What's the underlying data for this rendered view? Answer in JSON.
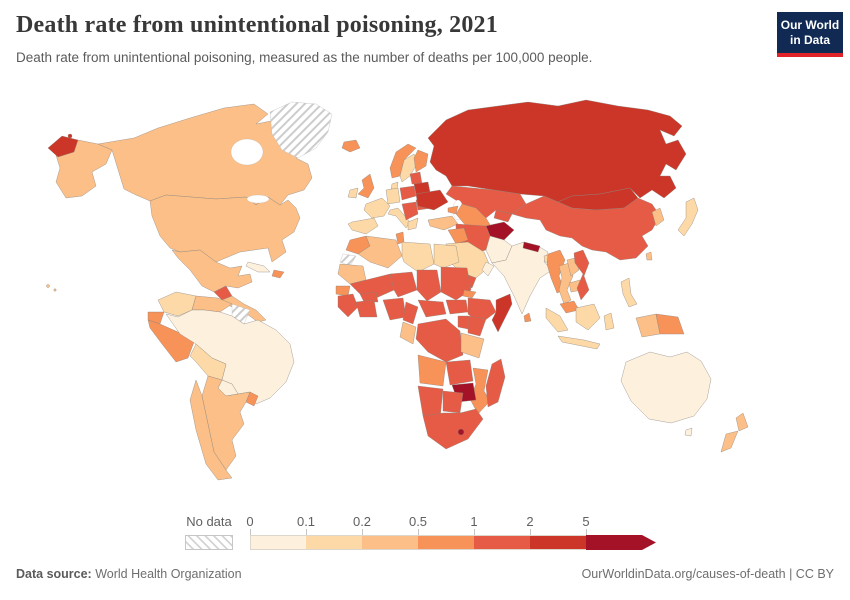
{
  "header": {
    "title": "Death rate from unintentional poisoning, 2021",
    "subtitle": "Death rate from unintentional poisoning, measured as the number of deaths per 100,000 people.",
    "logo": {
      "line1": "Our World",
      "line2": "in Data",
      "bg_color": "#102a54",
      "accent_color": "#e02329"
    }
  },
  "legend": {
    "no_data_label": "No data",
    "tick_labels": [
      "0",
      "0.1",
      "0.2",
      "0.5",
      "1",
      "2",
      "5"
    ],
    "bin_colors": [
      "#fdf0dd",
      "#fcd9a6",
      "#fbbf87",
      "#f79259",
      "#e55b45",
      "#cc3628",
      "#a31226"
    ]
  },
  "footer": {
    "source_label": "Data source:",
    "source_value": " World Health Organization",
    "credit": "OurWorldinData.org/causes-of-death | CC BY"
  },
  "chart_data": {
    "type": "choropleth_map",
    "title": "Death rate from unintentional poisoning, 2021",
    "unit": "deaths per 100,000 people",
    "year": "2021",
    "bin_ranges": [
      "0–0.1",
      "0.1–0.2",
      "0.2–0.5",
      "0.5–1",
      "1–2",
      "2–5",
      "5+"
    ],
    "no_data_style": "hatched",
    "regions": {
      "alaska": 2,
      "canada": 2,
      "usa": 2,
      "mexico": 2,
      "guatemala": 4,
      "central_america": 2,
      "cuba": 0,
      "hispaniola": 3,
      "hawaii": 2,
      "greenland": "no_data",
      "iceland": 3,
      "colombia": 1,
      "venezuela": 2,
      "guyanas": "no_data",
      "ecuador": 3,
      "peru": 3,
      "brazil": 0,
      "bolivia": 1,
      "paraguay": 0,
      "uruguay": 3,
      "argentina": 2,
      "chile": 2,
      "norway": 3,
      "sweden": 1,
      "finland": 3,
      "denmark": 1,
      "uk": 3,
      "ireland": 1,
      "france": 1,
      "spain": 1,
      "germany": 1,
      "poland": 4,
      "italy": 1,
      "balkans": 4,
      "greece": 1,
      "romania": 4,
      "baltics": 4,
      "belarus": 5,
      "ukraine": 5,
      "turkey": 2,
      "russia": 5,
      "chukotka": 5,
      "kazakhstan": 4,
      "central_asia": 3,
      "kyrgyzstan": 4,
      "caucasus": 3,
      "mongolia": 5,
      "china": 4,
      "korea": 2,
      "japan": 1,
      "taiwan": 2,
      "afghanistan": 6,
      "iran": 4,
      "pakistan": 0,
      "iraq": 3,
      "saudi_arabia": 1,
      "yemen": 4,
      "oman": 0,
      "india": 0,
      "nepal": 6,
      "bangladesh": 1,
      "sri_lanka": 3,
      "myanmar": 3,
      "thailand": 2,
      "laos": 2,
      "cambodia": 2,
      "vietnam": 4,
      "malaysia": 3,
      "borneo": 1,
      "sumatra": 1,
      "java": 1,
      "sulawesi": 1,
      "west_new_guinea": 2,
      "papua_new_guinea": 3,
      "philippines": 1,
      "morocco": 3,
      "western_sahara": "no_data",
      "algeria": 2,
      "tunisia": 3,
      "libya": 1,
      "egypt": 1,
      "mauritania": 2,
      "mali": 4,
      "niger": 4,
      "chad": 4,
      "sudan": 4,
      "eritrea": 3,
      "ethiopia": 4,
      "somalia": 5,
      "senegal": 3,
      "guinea": 4,
      "ivory_coast_ghana": 4,
      "burkina_faso": 4,
      "nigeria": 4,
      "cameroon": 4,
      "central_african_republic": 4,
      "south_sudan": 4,
      "kenya": 4,
      "uganda": 4,
      "drc": 4,
      "congo_gabon": 2,
      "tanzania": 2,
      "angola": 3,
      "zambia": 4,
      "mozambique": 3,
      "zimbabwe": 6,
      "namibia": 4,
      "botswana": 4,
      "south_africa": 4,
      "lesotho": 6,
      "madagascar": 4,
      "australia": 0,
      "tasmania": 0,
      "new_zealand_north": 2,
      "new_zealand_south": 2
    }
  }
}
